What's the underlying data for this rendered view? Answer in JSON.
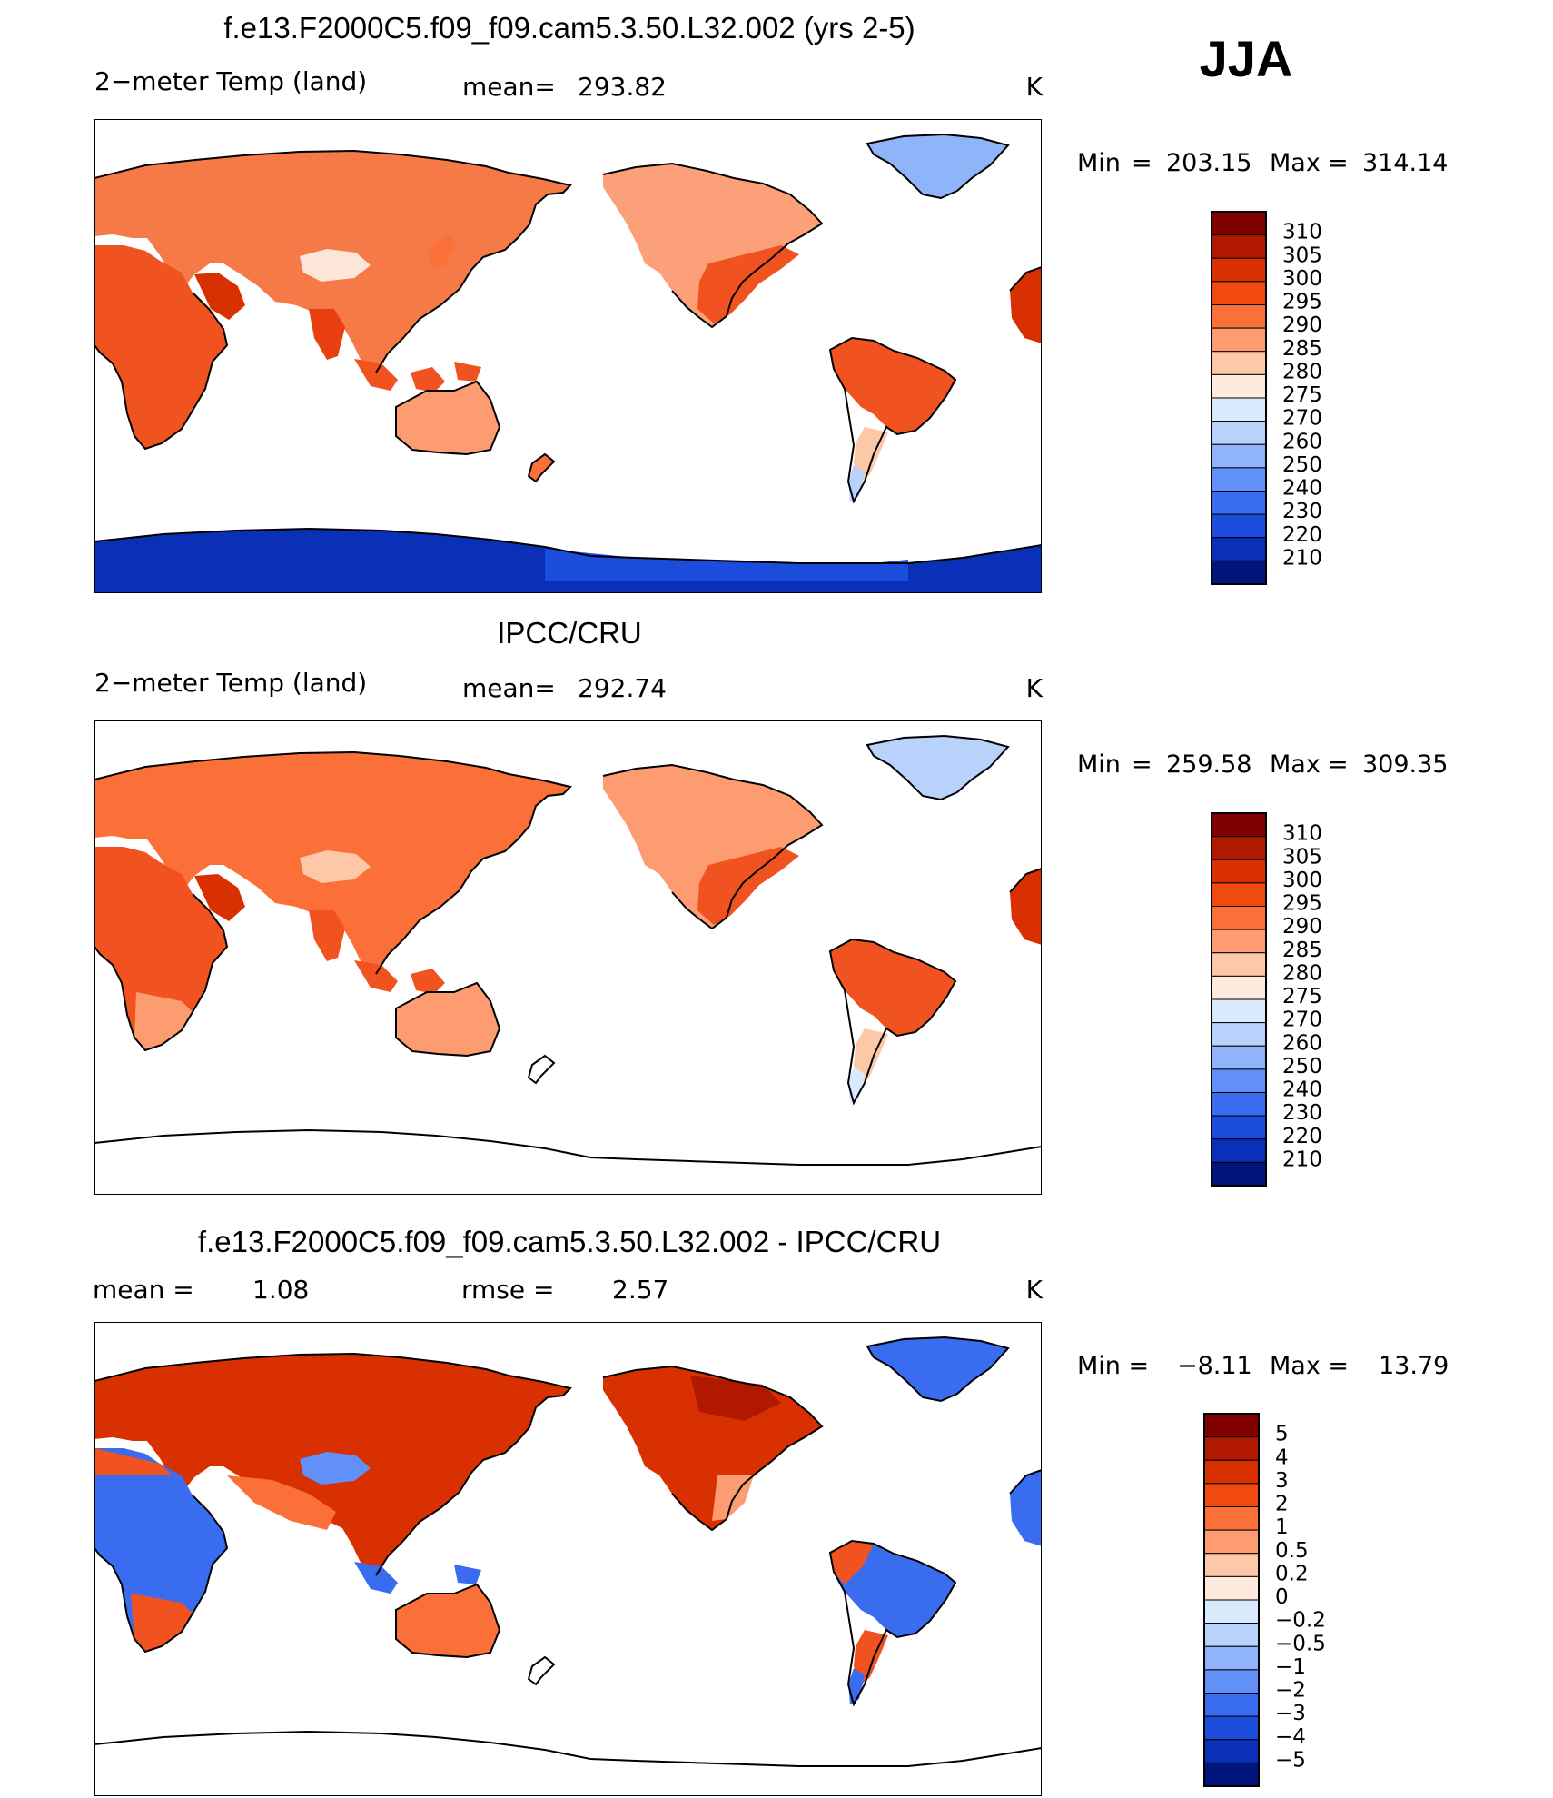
{
  "season": "JJA",
  "chart_data": [
    {
      "type": "heatmap",
      "title": "f.e13.F2000C5.f09_f09.cam5.3.50.L32.002 (yrs 2-5)",
      "variable": "2−meter Temp (land)",
      "stat_label": "mean=",
      "stat_value": "293.82",
      "units": "K",
      "min_label": "Min",
      "min_value": "203.15",
      "max_label": "Max",
      "max_value": "314.14",
      "colorbar": {
        "levels": [
          "310",
          "305",
          "300",
          "295",
          "290",
          "285",
          "280",
          "275",
          "270",
          "260",
          "250",
          "240",
          "230",
          "220",
          "210"
        ],
        "colors": [
          "#800000",
          "#b01800",
          "#d83000",
          "#f04a10",
          "#fa7038",
          "#fc9c70",
          "#fdc8a8",
          "#feeadc",
          "#d8eafc",
          "#b8d2fc",
          "#90b4fa",
          "#6090f8",
          "#3a6cf0",
          "#1c4cdc",
          "#0a30b8",
          "#00147c"
        ]
      },
      "projection": "cylindrical-equidistant, centered 180E",
      "antarctica_filled": true
    },
    {
      "type": "heatmap",
      "title": "IPCC/CRU",
      "variable": "2−meter Temp (land)",
      "stat_label": "mean=",
      "stat_value": "292.74",
      "units": "K",
      "min_label": "Min",
      "min_value": "259.58",
      "max_label": "Max",
      "max_value": "309.35",
      "colorbar": {
        "levels": [
          "310",
          "305",
          "300",
          "295",
          "290",
          "285",
          "280",
          "275",
          "270",
          "260",
          "250",
          "240",
          "230",
          "220",
          "210"
        ],
        "colors": [
          "#800000",
          "#b01800",
          "#d83000",
          "#f04a10",
          "#fa7038",
          "#fc9c70",
          "#fdc8a8",
          "#feeadc",
          "#d8eafc",
          "#b8d2fc",
          "#90b4fa",
          "#6090f8",
          "#3a6cf0",
          "#1c4cdc",
          "#0a30b8",
          "#00147c"
        ]
      },
      "projection": "cylindrical-equidistant, centered 180E",
      "antarctica_filled": false
    },
    {
      "type": "heatmap",
      "title": "f.e13.F2000C5.f09_f09.cam5.3.50.L32.002 - IPCC/CRU",
      "stat_label": "mean =",
      "stat_value": "1.08",
      "stat2_label": "rmse =",
      "stat2_value": "2.57",
      "units": "K",
      "min_label": "Min =",
      "min_value": "−8.11",
      "max_label": "Max =",
      "max_value": "13.79",
      "colorbar": {
        "levels": [
          "5",
          "4",
          "3",
          "2",
          "1",
          "0.5",
          "0.2",
          "0",
          "−0.2",
          "−0.5",
          "−1",
          "−2",
          "−3",
          "−4",
          "−5"
        ],
        "colors": [
          "#800000",
          "#b01800",
          "#d83000",
          "#f04a10",
          "#fa7038",
          "#fc9c70",
          "#fdc8a8",
          "#feeadc",
          "#d8eafc",
          "#b8d2fc",
          "#90b4fa",
          "#6090f8",
          "#3a6cf0",
          "#1c4cdc",
          "#0a30b8",
          "#00147c"
        ]
      },
      "projection": "cylindrical-equidistant, centered 180E",
      "antarctica_filled": false
    }
  ]
}
